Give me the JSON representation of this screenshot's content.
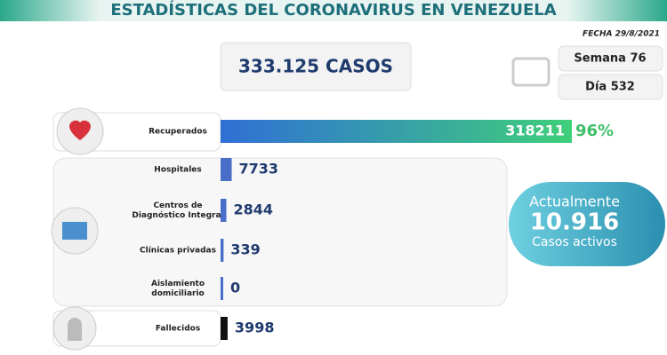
{
  "header": {
    "title": "ESTADÍSTICAS DEL CORONAVIRUS EN VENEZUELA",
    "date": "FECHA 29/8/2021"
  },
  "total": "333.125 CASOS",
  "week": "Semana 76",
  "day": "Día 532",
  "rows": [
    {
      "label": [
        "Recuperados"
      ],
      "value": 318211,
      "color": "#3a7bd5",
      "percent": "96%"
    },
    {
      "label": [
        "Hospitales"
      ],
      "value": 7733,
      "color": "#4a6fc9"
    },
    {
      "label": [
        "Centros de",
        "Diagnóstico Integral"
      ],
      "value": 2844,
      "color": "#4a6fc9"
    },
    {
      "label": [
        "Clínicas privadas"
      ],
      "value": 339,
      "color": "#4a6fc9"
    },
    {
      "label": [
        "Aislamiento",
        "domiciliario"
      ],
      "value": 0,
      "color": "#4a6fc9"
    },
    {
      "label": [
        "Fallecidos"
      ],
      "value": 3998,
      "color": "#111111"
    }
  ],
  "active": {
    "title": "Actualmente",
    "value": "10.916",
    "subtitle": "Casos activos"
  }
}
